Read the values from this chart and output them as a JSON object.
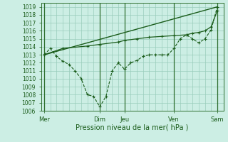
{
  "bg_color": "#cceee4",
  "grid_color": "#99ccbb",
  "line_color": "#1a5c1a",
  "xlabel": "Pression niveau de la mer( hPa )",
  "ylim": [
    1006,
    1019.5
  ],
  "yticks": [
    1006,
    1007,
    1008,
    1009,
    1010,
    1011,
    1012,
    1013,
    1014,
    1015,
    1016,
    1017,
    1018,
    1019
  ],
  "x_day_labels": [
    "Mer",
    "Dim",
    "Jeu",
    "Ven",
    "Sam"
  ],
  "x_day_positions": [
    0,
    9,
    13,
    21,
    28
  ],
  "vlines": [
    0,
    9,
    13,
    21,
    28
  ],
  "xlim": [
    -0.5,
    29
  ],
  "line1_x": [
    0,
    1,
    2,
    3,
    4,
    5,
    6,
    7,
    8,
    9,
    10,
    11,
    12,
    13,
    14,
    15,
    16,
    17,
    18,
    19,
    20,
    21,
    22,
    23,
    24,
    25,
    26,
    27,
    28
  ],
  "line1_y": [
    1013,
    1013.8,
    1012.8,
    1012.2,
    1011.8,
    1011.0,
    1010.0,
    1008.0,
    1007.8,
    1006.5,
    1007.8,
    1011.0,
    1012.0,
    1011.2,
    1012.0,
    1012.3,
    1012.8,
    1013.0,
    1013.0,
    1013.0,
    1013.0,
    1013.8,
    1015.0,
    1015.5,
    1015.0,
    1014.5,
    1015.0,
    1016.1,
    1019.0
  ],
  "line2_x": [
    0,
    3,
    7,
    9,
    12,
    13,
    15,
    17,
    19,
    21,
    23,
    24,
    25,
    26,
    27,
    28
  ],
  "line2_y": [
    1013,
    1013.8,
    1014.1,
    1014.3,
    1014.6,
    1014.8,
    1015.0,
    1015.2,
    1015.3,
    1015.4,
    1015.5,
    1015.7,
    1015.8,
    1016.0,
    1016.5,
    1018.5
  ],
  "line3_x": [
    0,
    28
  ],
  "line3_y": [
    1013,
    1019
  ],
  "figsize": [
    3.2,
    2.0
  ],
  "dpi": 100
}
